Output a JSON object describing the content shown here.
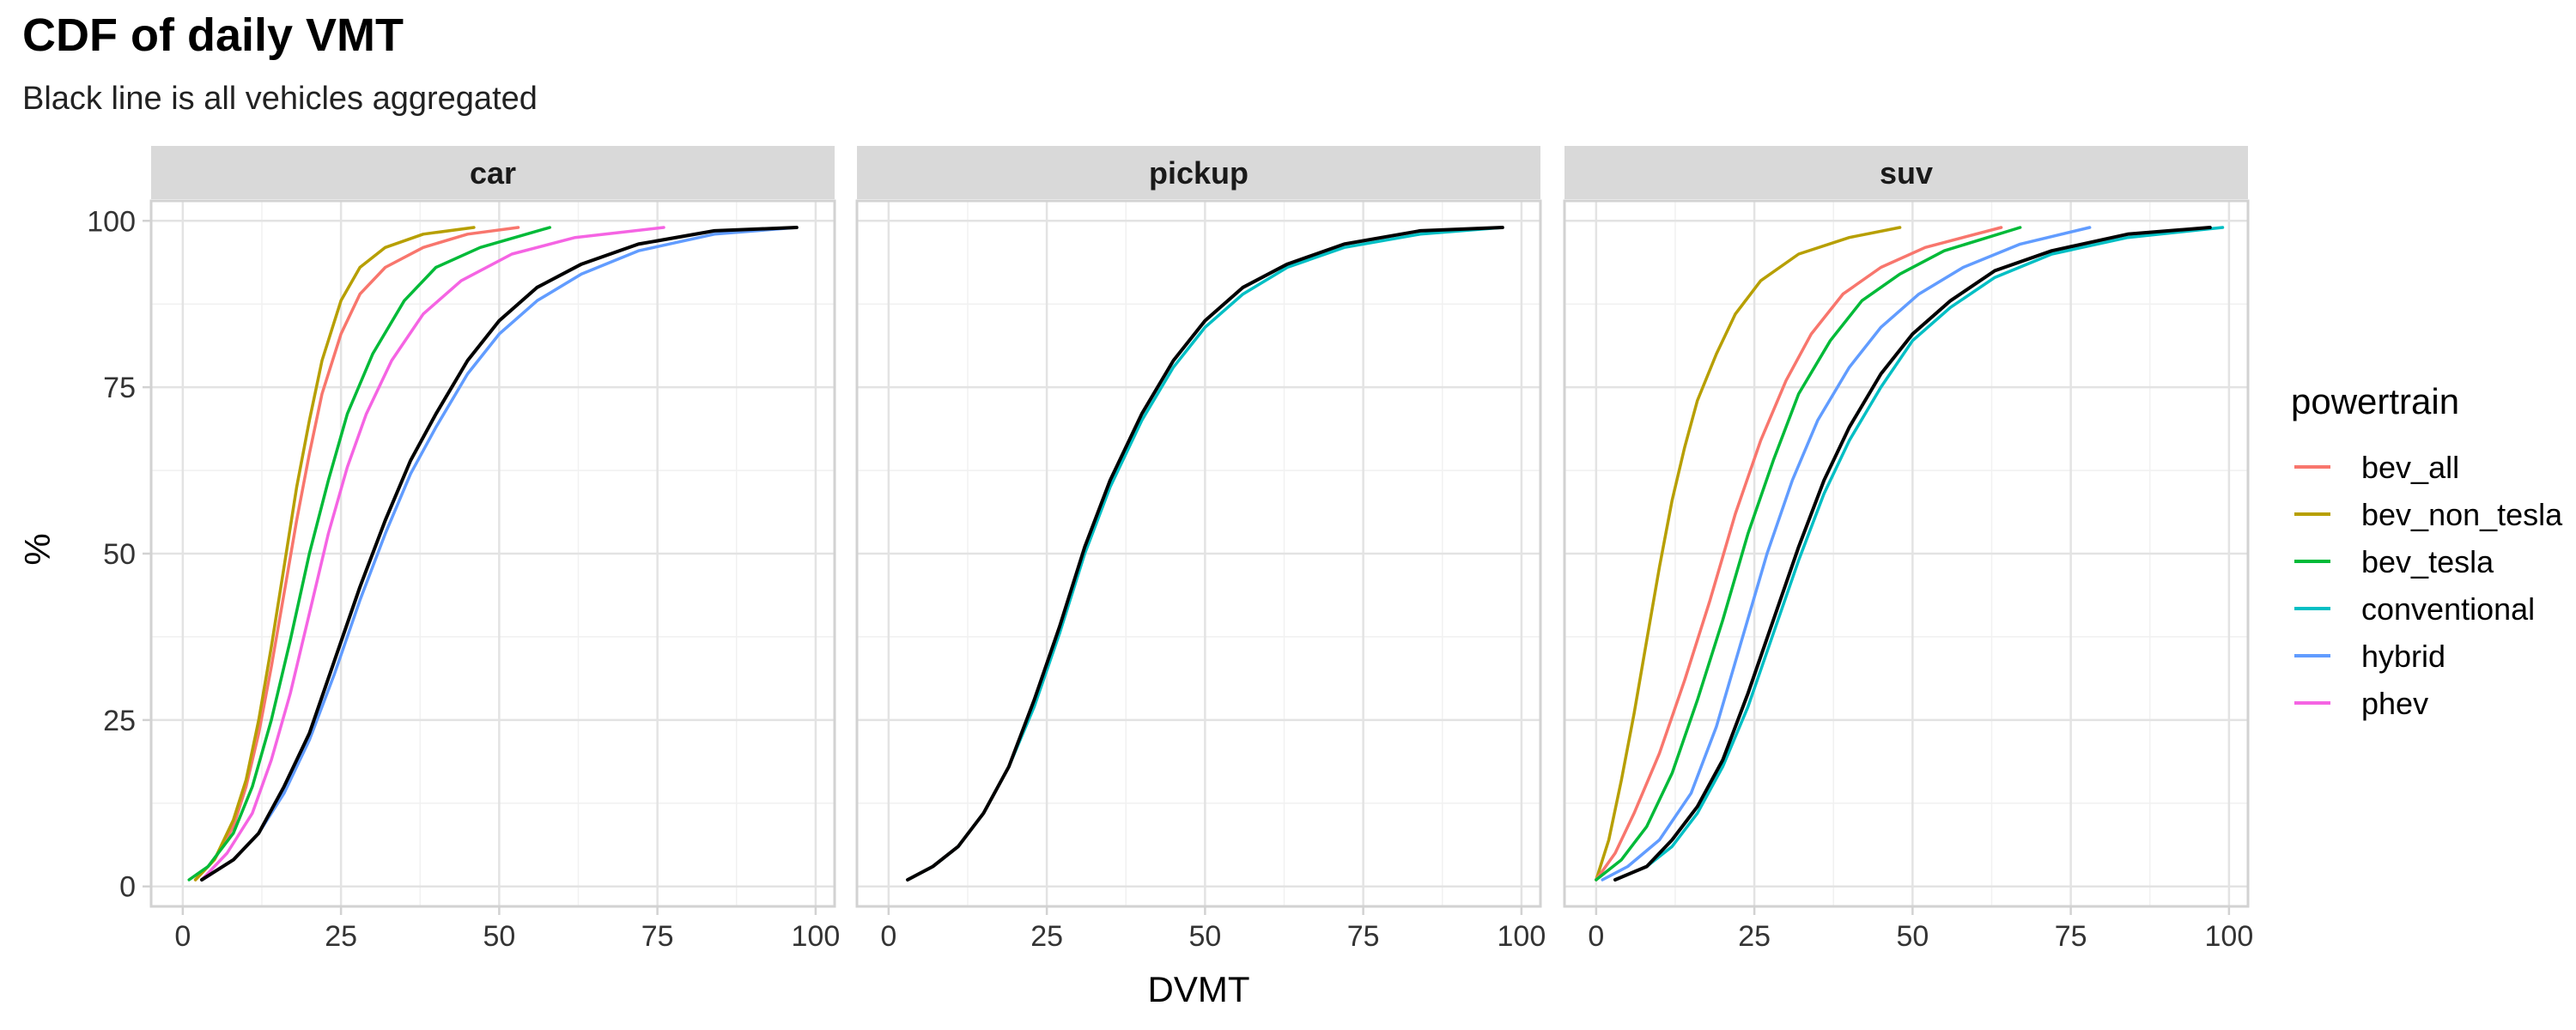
{
  "chart_data": {
    "type": "line",
    "title": "CDF of daily VMT",
    "subtitle": "Black line is all vehicles aggregated",
    "xlabel": "DVMT",
    "ylabel": "%",
    "xlim": [
      -5,
      103
    ],
    "ylim": [
      -3,
      103
    ],
    "x_ticks": [
      0,
      25,
      50,
      75,
      100
    ],
    "y_ticks": [
      0,
      25,
      50,
      75,
      100
    ],
    "grid": true,
    "legend": {
      "title": "powertrain",
      "position": "right"
    },
    "series_colors": {
      "bev_all": "#F8766D",
      "bev_non_tesla": "#B79F00",
      "bev_tesla": "#00BA38",
      "conventional": "#00BFC4",
      "hybrid": "#619CFF",
      "phev": "#F564E3",
      "all": "#000000"
    },
    "panels": [
      {
        "name": "car",
        "series": [
          {
            "name": "bev_all",
            "points": [
              [
                2,
                1
              ],
              [
                5,
                4
              ],
              [
                8,
                9
              ],
              [
                10,
                15
              ],
              [
                12,
                23
              ],
              [
                14,
                33
              ],
              [
                16,
                44
              ],
              [
                18,
                55
              ],
              [
                20,
                65
              ],
              [
                22,
                74
              ],
              [
                25,
                83
              ],
              [
                28,
                89
              ],
              [
                32,
                93
              ],
              [
                38,
                96
              ],
              [
                45,
                98
              ],
              [
                53,
                99
              ]
            ]
          },
          {
            "name": "bev_non_tesla",
            "points": [
              [
                2,
                1
              ],
              [
                5,
                4
              ],
              [
                8,
                10
              ],
              [
                10,
                16
              ],
              [
                12,
                25
              ],
              [
                14,
                36
              ],
              [
                16,
                48
              ],
              [
                18,
                60
              ],
              [
                20,
                70
              ],
              [
                22,
                79
              ],
              [
                25,
                88
              ],
              [
                28,
                93
              ],
              [
                32,
                96
              ],
              [
                38,
                98
              ],
              [
                46,
                99
              ]
            ]
          },
          {
            "name": "bev_tesla",
            "points": [
              [
                1,
                1
              ],
              [
                4,
                3
              ],
              [
                8,
                8
              ],
              [
                11,
                15
              ],
              [
                14,
                25
              ],
              [
                17,
                37
              ],
              [
                20,
                50
              ],
              [
                23,
                61
              ],
              [
                26,
                71
              ],
              [
                30,
                80
              ],
              [
                35,
                88
              ],
              [
                40,
                93
              ],
              [
                47,
                96
              ],
              [
                58,
                99
              ]
            ]
          },
          {
            "name": "phev",
            "points": [
              [
                3,
                1
              ],
              [
                7,
                5
              ],
              [
                11,
                11
              ],
              [
                14,
                19
              ],
              [
                17,
                29
              ],
              [
                20,
                41
              ],
              [
                23,
                53
              ],
              [
                26,
                63
              ],
              [
                29,
                71
              ],
              [
                33,
                79
              ],
              [
                38,
                86
              ],
              [
                44,
                91
              ],
              [
                52,
                95
              ],
              [
                62,
                97.5
              ],
              [
                76,
                99
              ]
            ]
          },
          {
            "name": "hybrid",
            "points": [
              [
                3,
                1
              ],
              [
                8,
                4
              ],
              [
                12,
                8
              ],
              [
                16,
                14
              ],
              [
                20,
                22
              ],
              [
                24,
                32
              ],
              [
                28,
                43
              ],
              [
                32,
                53
              ],
              [
                36,
                62
              ],
              [
                40,
                69
              ],
              [
                45,
                77
              ],
              [
                50,
                83
              ],
              [
                56,
                88
              ],
              [
                63,
                92
              ],
              [
                72,
                95.5
              ],
              [
                84,
                98
              ],
              [
                97,
                99
              ]
            ]
          },
          {
            "name": "all",
            "points": [
              [
                3,
                1
              ],
              [
                8,
                4
              ],
              [
                12,
                8
              ],
              [
                16,
                15
              ],
              [
                20,
                23
              ],
              [
                24,
                34
              ],
              [
                28,
                45
              ],
              [
                32,
                55
              ],
              [
                36,
                64
              ],
              [
                40,
                71
              ],
              [
                45,
                79
              ],
              [
                50,
                85
              ],
              [
                56,
                90
              ],
              [
                63,
                93.5
              ],
              [
                72,
                96.5
              ],
              [
                84,
                98.5
              ],
              [
                97,
                99
              ]
            ]
          }
        ]
      },
      {
        "name": "pickup",
        "series": [
          {
            "name": "conventional",
            "points": [
              [
                3,
                1
              ],
              [
                7,
                3
              ],
              [
                11,
                6
              ],
              [
                15,
                11
              ],
              [
                19,
                18
              ],
              [
                23,
                27
              ],
              [
                27,
                38
              ],
              [
                31,
                50
              ],
              [
                35,
                60
              ],
              [
                40,
                70
              ],
              [
                45,
                78
              ],
              [
                50,
                84
              ],
              [
                56,
                89
              ],
              [
                63,
                93
              ],
              [
                72,
                96
              ],
              [
                84,
                98
              ],
              [
                97,
                99
              ]
            ]
          },
          {
            "name": "all",
            "points": [
              [
                3,
                1
              ],
              [
                7,
                3
              ],
              [
                11,
                6
              ],
              [
                15,
                11
              ],
              [
                19,
                18
              ],
              [
                23,
                28
              ],
              [
                27,
                39
              ],
              [
                31,
                51
              ],
              [
                35,
                61
              ],
              [
                40,
                71
              ],
              [
                45,
                79
              ],
              [
                50,
                85
              ],
              [
                56,
                90
              ],
              [
                63,
                93.5
              ],
              [
                72,
                96.5
              ],
              [
                84,
                98.5
              ],
              [
                97,
                99
              ]
            ]
          }
        ]
      },
      {
        "name": "suv",
        "series": [
          {
            "name": "bev_non_tesla",
            "points": [
              [
                0,
                1
              ],
              [
                2,
                7
              ],
              [
                4,
                16
              ],
              [
                6,
                26
              ],
              [
                8,
                37
              ],
              [
                10,
                48
              ],
              [
                12,
                58
              ],
              [
                14,
                66
              ],
              [
                16,
                73
              ],
              [
                19,
                80
              ],
              [
                22,
                86
              ],
              [
                26,
                91
              ],
              [
                32,
                95
              ],
              [
                40,
                97.5
              ],
              [
                48,
                99
              ]
            ]
          },
          {
            "name": "bev_all",
            "points": [
              [
                0,
                1
              ],
              [
                3,
                5
              ],
              [
                6,
                11
              ],
              [
                10,
                20
              ],
              [
                14,
                31
              ],
              [
                18,
                43
              ],
              [
                22,
                56
              ],
              [
                26,
                67
              ],
              [
                30,
                76
              ],
              [
                34,
                83
              ],
              [
                39,
                89
              ],
              [
                45,
                93
              ],
              [
                52,
                96
              ],
              [
                64,
                99
              ]
            ]
          },
          {
            "name": "bev_tesla",
            "points": [
              [
                0,
                1
              ],
              [
                4,
                4
              ],
              [
                8,
                9
              ],
              [
                12,
                17
              ],
              [
                16,
                28
              ],
              [
                20,
                40
              ],
              [
                24,
                53
              ],
              [
                28,
                64
              ],
              [
                32,
                74
              ],
              [
                37,
                82
              ],
              [
                42,
                88
              ],
              [
                48,
                92
              ],
              [
                55,
                95.5
              ],
              [
                67,
                99
              ]
            ]
          },
          {
            "name": "hybrid",
            "points": [
              [
                1,
                1
              ],
              [
                5,
                3
              ],
              [
                10,
                7
              ],
              [
                15,
                14
              ],
              [
                19,
                24
              ],
              [
                23,
                37
              ],
              [
                27,
                50
              ],
              [
                31,
                61
              ],
              [
                35,
                70
              ],
              [
                40,
                78
              ],
              [
                45,
                84
              ],
              [
                51,
                89
              ],
              [
                58,
                93
              ],
              [
                67,
                96.5
              ],
              [
                78,
                99
              ]
            ]
          },
          {
            "name": "conventional",
            "points": [
              [
                3,
                1
              ],
              [
                8,
                3
              ],
              [
                12,
                6
              ],
              [
                16,
                11
              ],
              [
                20,
                18
              ],
              [
                24,
                27
              ],
              [
                28,
                38
              ],
              [
                32,
                49
              ],
              [
                36,
                59
              ],
              [
                40,
                67
              ],
              [
                45,
                75
              ],
              [
                50,
                82
              ],
              [
                56,
                87
              ],
              [
                63,
                91.5
              ],
              [
                72,
                95
              ],
              [
                84,
                97.5
              ],
              [
                99,
                99
              ]
            ]
          },
          {
            "name": "all",
            "points": [
              [
                3,
                1
              ],
              [
                8,
                3
              ],
              [
                12,
                7
              ],
              [
                16,
                12
              ],
              [
                20,
                19
              ],
              [
                24,
                29
              ],
              [
                28,
                40
              ],
              [
                32,
                51
              ],
              [
                36,
                61
              ],
              [
                40,
                69
              ],
              [
                45,
                77
              ],
              [
                50,
                83
              ],
              [
                56,
                88
              ],
              [
                63,
                92.5
              ],
              [
                72,
                95.5
              ],
              [
                84,
                98
              ],
              [
                97,
                99
              ]
            ]
          }
        ]
      }
    ]
  }
}
